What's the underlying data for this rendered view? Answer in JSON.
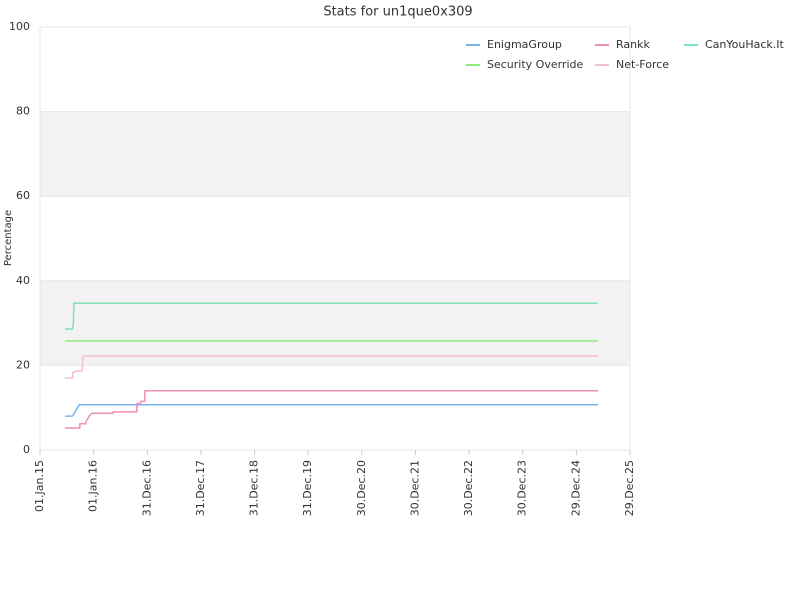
{
  "chart_data": {
    "type": "line",
    "title": "Stats for un1que0x309",
    "y_label": "Percentage",
    "xlim": [
      "2015-01-01",
      "2025-12-29"
    ],
    "xticks": [
      {
        "value": "2015-01-01",
        "label": "01.Jan.15"
      },
      {
        "value": "2016-01-01",
        "label": "01.Jan.16"
      },
      {
        "value": "2016-12-31",
        "label": "31.Dec.16"
      },
      {
        "value": "2017-12-31",
        "label": "31.Dec.17"
      },
      {
        "value": "2018-12-31",
        "label": "31.Dec.18"
      },
      {
        "value": "2019-12-31",
        "label": "31.Dec.19"
      },
      {
        "value": "2020-12-30",
        "label": "30.Dec.20"
      },
      {
        "value": "2021-12-30",
        "label": "30.Dec.21"
      },
      {
        "value": "2022-12-30",
        "label": "30.Dec.22"
      },
      {
        "value": "2023-12-30",
        "label": "30.Dec.23"
      },
      {
        "value": "2024-12-29",
        "label": "29.Dec.24"
      },
      {
        "value": "2025-12-29",
        "label": "29.Dec.25"
      }
    ],
    "ylim": [
      0,
      100
    ],
    "yticks": [
      0,
      20,
      40,
      60,
      80,
      100
    ],
    "grid": true,
    "band_color": "#f2f2f2",
    "legend": "top-right",
    "series": [
      {
        "name": "EnigmaGroup",
        "color": "#7cb5ec",
        "x": [
          "2015-06-20",
          "2015-08-10",
          "2015-09-25",
          "2025-05-26"
        ],
        "values": [
          8.0,
          8.0,
          10.7,
          10.7
        ]
      },
      {
        "name": "Rankk",
        "color": "#f08cb8",
        "x": [
          "2015-06-20",
          "2015-09-28",
          "2015-09-30",
          "2015-11-08",
          "2015-11-10",
          "2015-12-05",
          "2015-12-21",
          "2016-05-11",
          "2016-05-13",
          "2016-10-20",
          "2016-10-22",
          "2016-11-16",
          "2016-11-18",
          "2016-12-13",
          "2016-12-15",
          "2025-05-26"
        ],
        "values": [
          5.2,
          5.2,
          6.2,
          6.2,
          6.7,
          8.2,
          8.7,
          8.7,
          9.0,
          9.0,
          11.0,
          11.0,
          11.5,
          11.5,
          14.0,
          14.0
        ]
      },
      {
        "name": "CanYouHack.It",
        "color": "#7ee3b5",
        "x": [
          "2015-06-20",
          "2015-08-10",
          "2015-08-15",
          "2015-08-20",
          "2025-05-26"
        ],
        "values": [
          28.6,
          28.6,
          29.5,
          34.7,
          34.7
        ]
      },
      {
        "name": "Security Override",
        "color": "#90ed7d",
        "x": [
          "2015-06-20",
          "2025-05-26"
        ],
        "values": [
          25.8,
          25.8
        ]
      },
      {
        "name": "Net-Force",
        "color": "#f7bfcb",
        "x": [
          "2015-06-20",
          "2015-08-10",
          "2015-08-12",
          "2015-09-10",
          "2015-10-15",
          "2015-10-20",
          "2025-05-26"
        ],
        "values": [
          17.0,
          17.0,
          18.3,
          18.7,
          18.7,
          22.2,
          22.2
        ]
      }
    ]
  }
}
